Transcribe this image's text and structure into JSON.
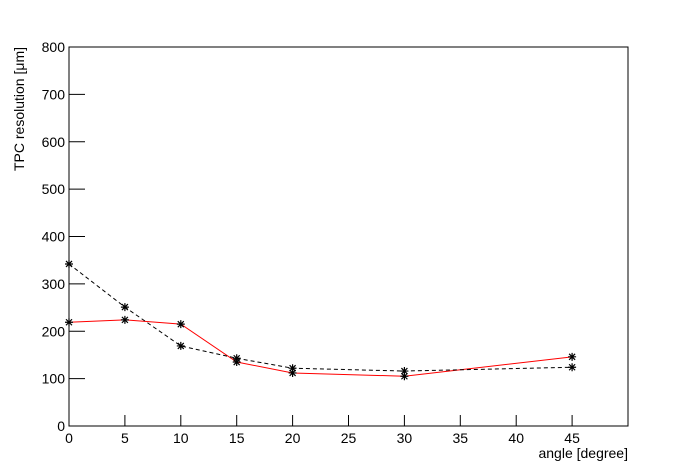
{
  "chart_data": {
    "type": "line",
    "x_label": "angle [degree]",
    "y_label": "TPC resolution [μm]",
    "xlim": [
      0,
      50
    ],
    "xticks": [
      0,
      5,
      10,
      15,
      20,
      25,
      30,
      35,
      40,
      45
    ],
    "ylim": [
      0,
      800
    ],
    "yticks": [
      0,
      100,
      200,
      300,
      400,
      500,
      600,
      700,
      800
    ],
    "x": [
      0,
      5,
      10,
      15,
      20,
      30,
      45
    ],
    "series": [
      {
        "color": "#ff0000",
        "line_style": "solid",
        "marker": "star",
        "marker_color": "#000000",
        "values": [
          219,
          224,
          215,
          135,
          112,
          105,
          146
        ]
      },
      {
        "color": "#000000",
        "line_style": "dashed",
        "marker": "star",
        "marker_color": "#000000",
        "values": [
          342,
          251,
          169,
          143,
          122,
          116,
          124
        ]
      }
    ]
  }
}
